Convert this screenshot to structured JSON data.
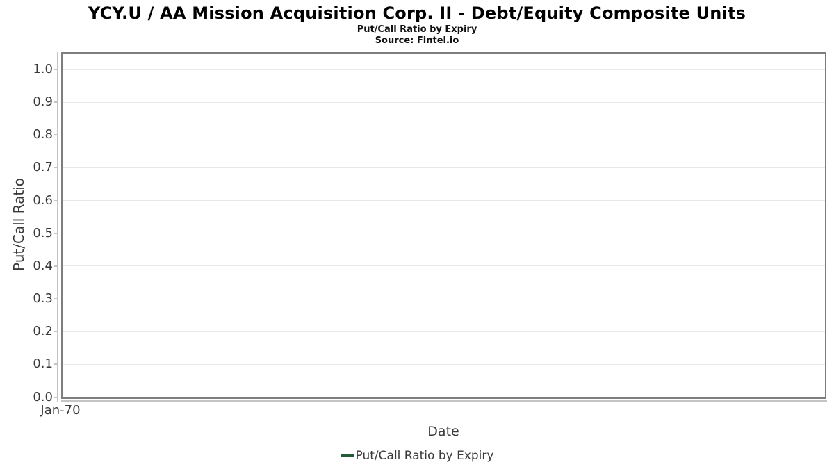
{
  "chart_data": {
    "type": "line",
    "title": "YCY.U / AA Mission Acquisition Corp. II - Debt/Equity Composite Units",
    "subtitle": "Put/Call Ratio by Expiry",
    "source": "Source: Fintel.io",
    "xlabel": "Date",
    "ylabel": "Put/Call Ratio",
    "x_tick_labels": [
      "Jan-70"
    ],
    "y_tick_labels": [
      "0.0",
      "0.1",
      "0.2",
      "0.3",
      "0.4",
      "0.5",
      "0.6",
      "0.7",
      "0.8",
      "0.9",
      "1.0"
    ],
    "ylim": [
      0.0,
      1.054
    ],
    "grid": "horizontal-only",
    "legend_position": "bottom-center",
    "series": [
      {
        "name": "Put/Call Ratio by Expiry",
        "color": "#235c35",
        "x": [],
        "values": []
      }
    ]
  },
  "colors": {
    "series_green": "#235c35",
    "plot_border": "#7e7e7e",
    "gridline": "#e8e8e8",
    "axis_line": "#c4c4c4",
    "tick_text": "#3a3a3a",
    "title_text": "#000000",
    "background": "#ffffff"
  }
}
